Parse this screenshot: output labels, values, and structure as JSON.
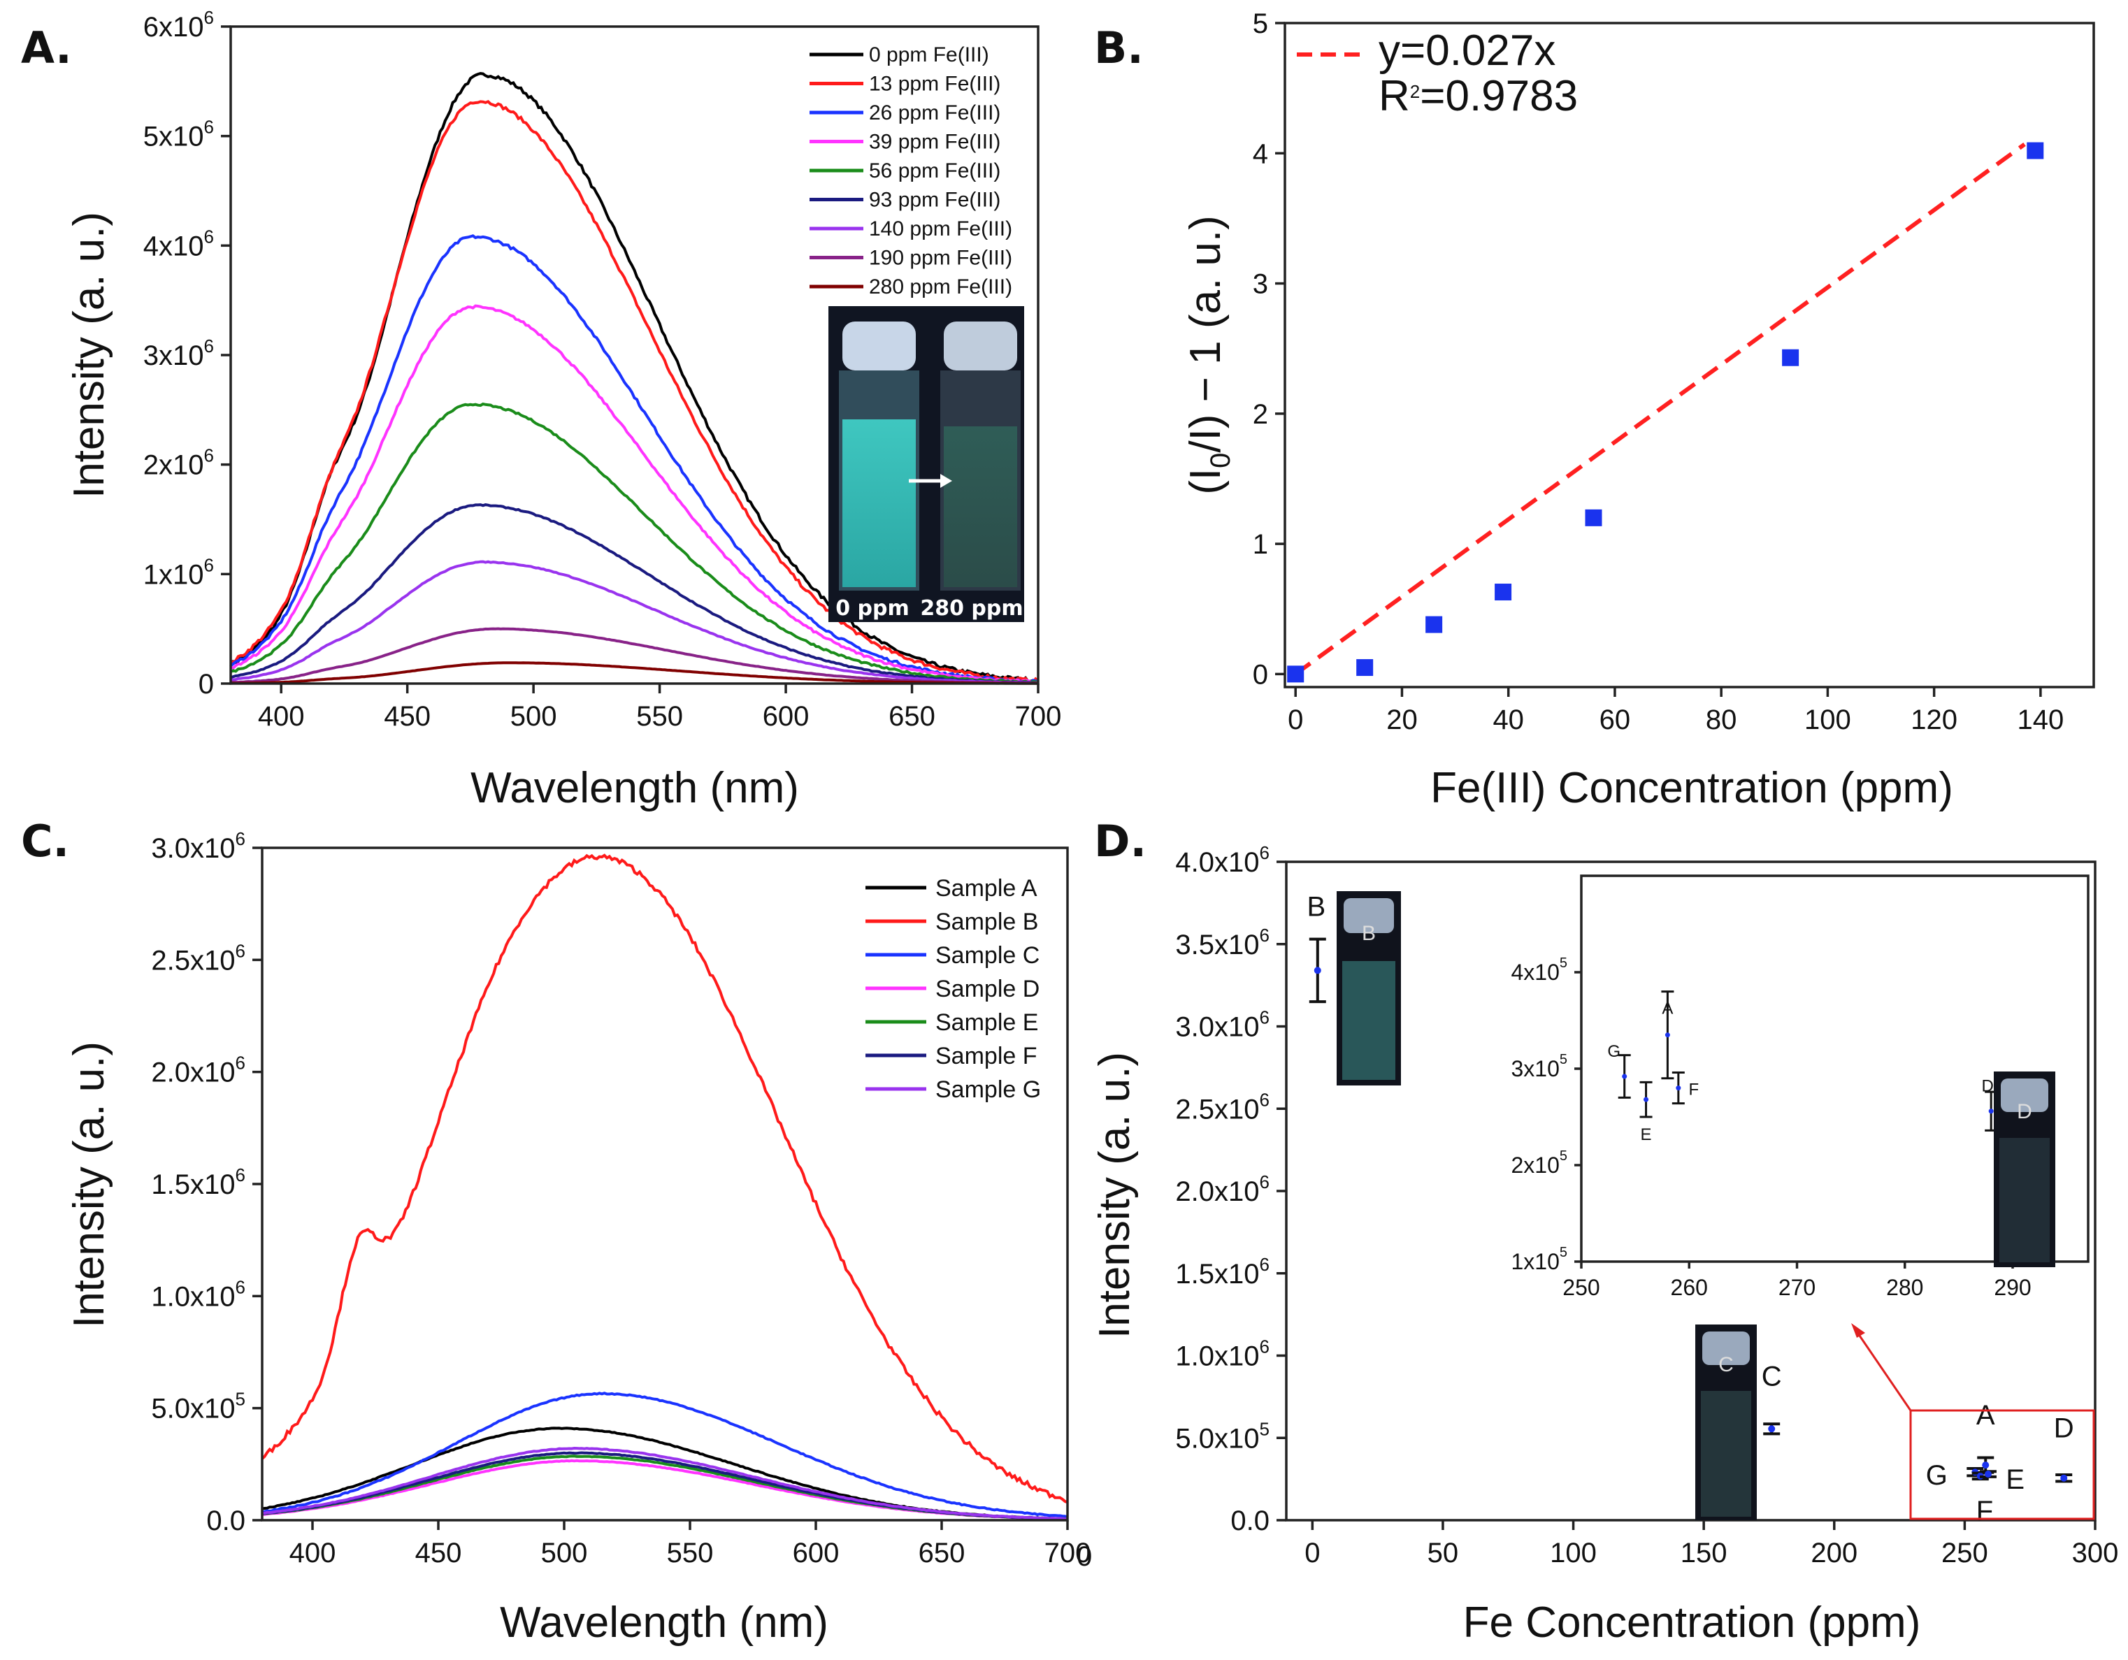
{
  "panels": {
    "A": {
      "label": "A.",
      "photo_caption": [
        "0 ppm",
        "280 ppm"
      ]
    },
    "B": {
      "label": "B.",
      "fit_label": "y=0.027x",
      "r2_label": "R²=0.9783",
      "r2_base": "R",
      "r2_sup": "2",
      "r2_value": "=0.9783"
    },
    "C": {
      "label": "C."
    },
    "D": {
      "label": "D."
    }
  },
  "colors": {
    "black": "#000000",
    "red": "#ff1a1a",
    "blue": "#1a33ff",
    "magenta": "#ff33ff",
    "green": "#1a8c1a",
    "navy": "#1a1a80",
    "violet": "#9933ee",
    "purple": "#882288",
    "maroon": "#800000",
    "marker": "#1a33ee",
    "fitline": "#ff2020"
  },
  "chart_data": [
    {
      "id": "A",
      "type": "line",
      "title": "",
      "xlabel": "Wavelength (nm)",
      "ylabel": "Intensity (a. u.)",
      "xlim": [
        380,
        700
      ],
      "ylim": [
        0,
        6000000
      ],
      "xticks": [
        400,
        450,
        500,
        550,
        600,
        650,
        700
      ],
      "yticks": [
        {
          "v": 0,
          "label": "0"
        },
        {
          "v": 1000000,
          "base": "1x10",
          "exp": "6"
        },
        {
          "v": 2000000,
          "base": "2x10",
          "exp": "6"
        },
        {
          "v": 3000000,
          "base": "3x10",
          "exp": "6"
        },
        {
          "v": 4000000,
          "base": "4x10",
          "exp": "6"
        },
        {
          "v": 5000000,
          "base": "5x10",
          "exp": "6"
        },
        {
          "v": 6000000,
          "base": "6x10",
          "exp": "6"
        }
      ],
      "legend_position": "top-right",
      "series": [
        {
          "name": "0 ppm Fe(III)",
          "color": "black",
          "peak_x": 480,
          "peak": 5560000,
          "shoulder": 1000000
        },
        {
          "name": "13 ppm Fe(III)",
          "color": "red",
          "peak_x": 478,
          "peak": 5320000,
          "shoulder": 850000
        },
        {
          "name": "26 ppm Fe(III)",
          "color": "blue",
          "peak_x": 476,
          "peak": 4080000,
          "shoulder": 620000
        },
        {
          "name": "39 ppm Fe(III)",
          "color": "magenta",
          "peak_x": 476,
          "peak": 3440000,
          "shoulder": 500000
        },
        {
          "name": "56 ppm Fe(III)",
          "color": "green",
          "peak_x": 476,
          "peak": 2550000,
          "shoulder": 370000
        },
        {
          "name": "93 ppm Fe(III)",
          "color": "navy",
          "peak_x": 478,
          "peak": 1630000,
          "shoulder": 230000
        },
        {
          "name": "140 ppm Fe(III)",
          "color": "violet",
          "peak_x": 480,
          "peak": 1110000,
          "shoulder": 150000
        },
        {
          "name": "190 ppm Fe(III)",
          "color": "purple",
          "peak_x": 485,
          "peak": 500000,
          "shoulder": 70000
        },
        {
          "name": "280 ppm Fe(III)",
          "color": "maroon",
          "peak_x": 490,
          "peak": 190000,
          "shoulder": 25000
        }
      ]
    },
    {
      "id": "B",
      "type": "scatter",
      "title": "",
      "xlabel": "Fe(III) Concentration (ppm)",
      "ylabel": "(I₀/I) − 1 (a. u.)",
      "ylabel_parts": [
        "(I",
        "0",
        "/I) − 1 (a. u.)"
      ],
      "xlim": [
        -2,
        150
      ],
      "ylim": [
        -0.1,
        5
      ],
      "xticks": [
        0,
        20,
        40,
        60,
        80,
        100,
        120,
        140
      ],
      "yticks": [
        0,
        1,
        2,
        3,
        4,
        5
      ],
      "points": [
        {
          "x": 0,
          "y": 0.0
        },
        {
          "x": 13,
          "y": 0.05
        },
        {
          "x": 26,
          "y": 0.38
        },
        {
          "x": 39,
          "y": 0.63
        },
        {
          "x": 56,
          "y": 1.2
        },
        {
          "x": 93,
          "y": 2.43
        },
        {
          "x": 139,
          "y": 4.02
        }
      ],
      "fit": {
        "slope": 0.027,
        "x_range": [
          0,
          139
        ],
        "label": "y=0.027x",
        "r2": 0.9783
      }
    },
    {
      "id": "C",
      "type": "line",
      "title": "",
      "xlabel": "Wavelength (nm)",
      "ylabel": "Intensity (a. u.)",
      "xlim": [
        380,
        700
      ],
      "ylim": [
        0,
        3000000
      ],
      "xticks": [
        400,
        450,
        500,
        550,
        600,
        650,
        700
      ],
      "extra_tick_text": "0",
      "yticks": [
        {
          "v": 0,
          "label": "0.0"
        },
        {
          "v": 500000,
          "base": "5.0x10",
          "exp": "5"
        },
        {
          "v": 1000000,
          "base": "1.0x10",
          "exp": "6"
        },
        {
          "v": 1500000,
          "base": "1.5x10",
          "exp": "6"
        },
        {
          "v": 2000000,
          "base": "2.0x10",
          "exp": "6"
        },
        {
          "v": 2500000,
          "base": "2.5x10",
          "exp": "6"
        },
        {
          "v": 3000000,
          "base": "3.0x10",
          "exp": "6"
        }
      ],
      "legend_position": "top-right",
      "series": [
        {
          "name": "Sample A",
          "color": "black",
          "peak_x": 498,
          "peak": 410000
        },
        {
          "name": "Sample B",
          "color": "red",
          "peak_x": 515,
          "peak": 2950000
        },
        {
          "name": "Sample C",
          "color": "blue",
          "peak_x": 515,
          "peak": 565000
        },
        {
          "name": "Sample D",
          "color": "magenta",
          "peak_x": 505,
          "peak": 265000
        },
        {
          "name": "Sample E",
          "color": "green",
          "peak_x": 505,
          "peak": 285000
        },
        {
          "name": "Sample F",
          "color": "navy",
          "peak_x": 505,
          "peak": 300000
        },
        {
          "name": "Sample G",
          "color": "violet",
          "peak_x": 505,
          "peak": 320000
        }
      ]
    },
    {
      "id": "D",
      "type": "scatter",
      "title": "",
      "xlabel": "Fe Concentration (ppm)",
      "ylabel": "Intensity (a. u.)",
      "xlim": [
        -10,
        300
      ],
      "ylim": [
        0,
        4000000
      ],
      "xticks": [
        0,
        50,
        100,
        150,
        200,
        250,
        300
      ],
      "yticks": [
        {
          "v": 0,
          "label": "0.0"
        },
        {
          "v": 500000,
          "base": "5.0x10",
          "exp": "5"
        },
        {
          "v": 1000000,
          "base": "1.0x10",
          "exp": "6"
        },
        {
          "v": 1500000,
          "base": "1.5x10",
          "exp": "6"
        },
        {
          "v": 2000000,
          "base": "2.0x10",
          "exp": "6"
        },
        {
          "v": 2500000,
          "base": "2.5x10",
          "exp": "6"
        },
        {
          "v": 3000000,
          "base": "3.0x10",
          "exp": "6"
        },
        {
          "v": 3500000,
          "base": "3.5x10",
          "exp": "6"
        },
        {
          "v": 4000000,
          "base": "4.0x10",
          "exp": "6"
        }
      ],
      "points": [
        {
          "label": "B",
          "x": 2,
          "y": 3340000,
          "err": 190000
        },
        {
          "label": "C",
          "x": 176,
          "y": 555000,
          "err": 30000
        },
        {
          "label": "A",
          "x": 258,
          "y": 335000,
          "err": 45000
        },
        {
          "label": "G",
          "x": 254,
          "y": 292000,
          "err": 22000
        },
        {
          "label": "E",
          "x": 256,
          "y": 268000,
          "err": 18000
        },
        {
          "label": "F",
          "x": 259,
          "y": 280000,
          "err": 16000
        },
        {
          "label": "D",
          "x": 288,
          "y": 256000,
          "err": 20000
        }
      ],
      "vial_labels": [
        "B",
        "C",
        "D"
      ],
      "inset": {
        "xlim": [
          250,
          297
        ],
        "ylim": [
          100000,
          500000
        ],
        "xticks": [
          250,
          260,
          270,
          280,
          290
        ],
        "yticks": [
          {
            "v": 100000,
            "base": "1x10",
            "exp": "5"
          },
          {
            "v": 200000,
            "base": "2x10",
            "exp": "5"
          },
          {
            "v": 300000,
            "base": "3x10",
            "exp": "5"
          },
          {
            "v": 400000,
            "base": "4x10",
            "exp": "5"
          }
        ],
        "points": [
          "A",
          "G",
          "E",
          "F",
          "D"
        ]
      }
    }
  ]
}
